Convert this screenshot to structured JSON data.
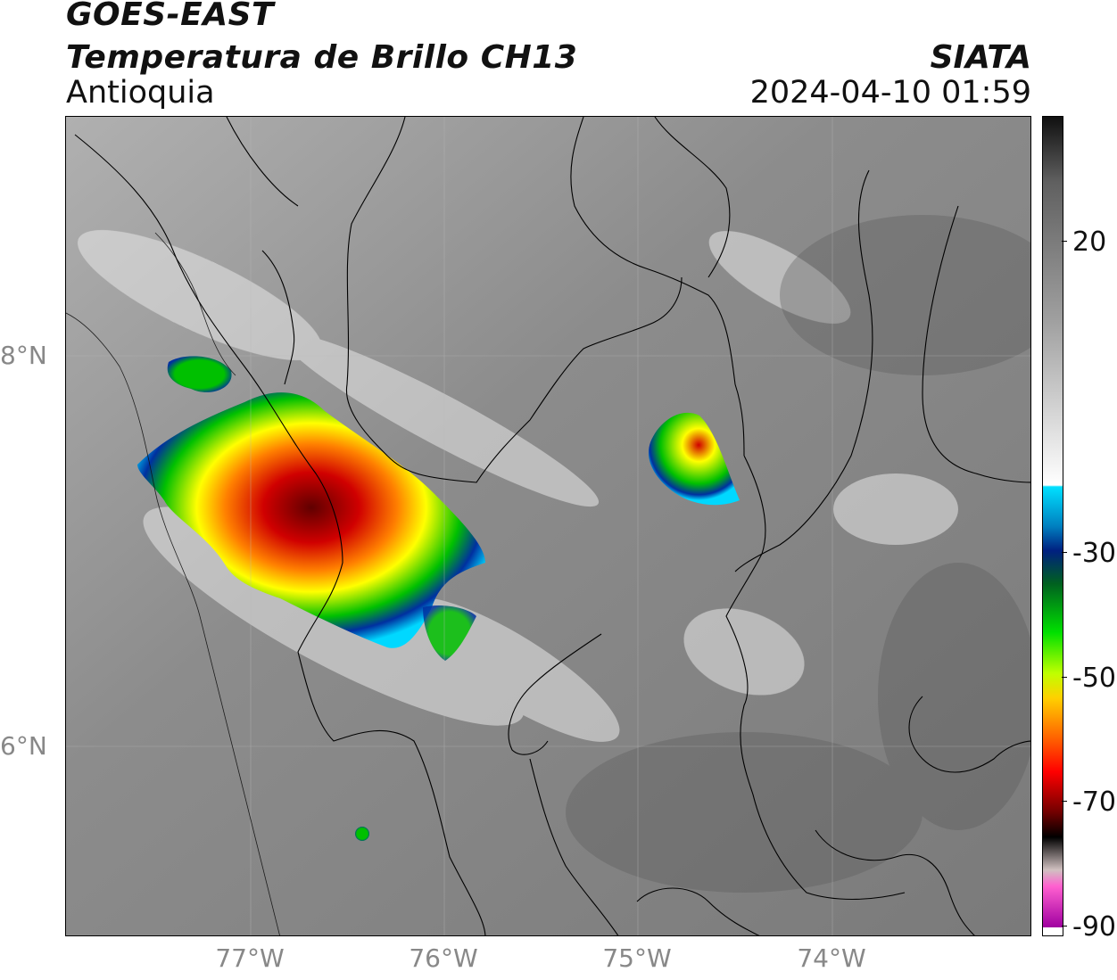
{
  "header": {
    "line1": "GOES-EAST",
    "line2": "Temperatura de Brillo CH13",
    "region": "Antioquia",
    "org": "SIATA",
    "datetime": "2024-04-10 01:59"
  },
  "axes": {
    "lat_labels": [
      "8°N",
      "6°N"
    ],
    "lon_labels": [
      "77°W",
      "76°W",
      "75°W",
      "74°W"
    ]
  },
  "colorbar": {
    "ticks": [
      "20",
      "-30",
      "-50",
      "-70",
      "-90"
    ]
  },
  "colors": {
    "background": "#8a8a8a",
    "cold_cloud_scale": [
      "#00d8ff",
      "#0030a0",
      "#00c000",
      "#ffff00",
      "#ff8000",
      "#ff0000",
      "#600000",
      "#000000"
    ]
  }
}
